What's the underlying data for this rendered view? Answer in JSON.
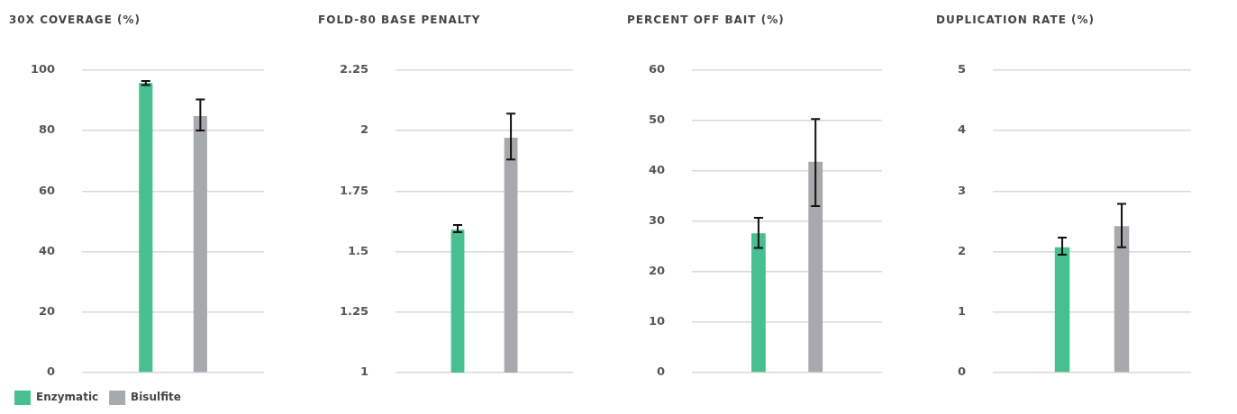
{
  "chart_data": [
    {
      "type": "bar",
      "title": "30X COVERAGE (%)",
      "categories": [
        null
      ],
      "series": [
        {
          "name": "Enzymatic",
          "color": "#48bf91",
          "values": [
            95.7
          ],
          "errors": [
            [
              95.0,
              96.4
            ]
          ]
        },
        {
          "name": "Bisulfite",
          "color": "#a8a9ad",
          "values": [
            84.8
          ],
          "errors": [
            [
              80,
              90.3
            ]
          ]
        }
      ],
      "ylim": [
        0,
        100
      ],
      "yticks": [
        0,
        20,
        40,
        60,
        80,
        100
      ],
      "grid": "y",
      "legend": "bottom left",
      "tick_labels": "y"
    },
    {
      "type": "bar",
      "title": "FOLD-80 BASE PENALTY",
      "categories": [
        null
      ],
      "series": [
        {
          "color": "#48bf91",
          "values": [
            1.59
          ],
          "errors": [
            [
              1.58,
              1.61
            ]
          ]
        },
        {
          "color": "#a8a9ad",
          "values": [
            1.97
          ],
          "errors": [
            [
              1.88,
              2.07
            ]
          ]
        }
      ],
      "ylim": [
        1,
        2.25
      ],
      "yticks": [
        1,
        1.25,
        1.5,
        1.75,
        2,
        2.25
      ],
      "grid": "y",
      "legend": false,
      "tick_labels": "y"
    },
    {
      "type": "bar",
      "title": "PERCENT OFF BAIT (%)",
      "categories": [
        null
      ],
      "series": [
        {
          "color": "#48bf91",
          "values": [
            27.6
          ],
          "errors": [
            [
              24.7,
              30.7
            ]
          ]
        },
        {
          "color": "#a8a9ad",
          "values": [
            41.8
          ],
          "errors": [
            [
              33,
              50.3
            ]
          ]
        }
      ],
      "ylim": [
        0,
        60
      ],
      "yticks": [
        0,
        10,
        20,
        30,
        40,
        50,
        60
      ],
      "grid": "y",
      "legend": false,
      "tick_labels": "y"
    },
    {
      "type": "bar",
      "title": "DUPLICATION RATE (%)",
      "categories": [
        null
      ],
      "series": [
        {
          "color": "#48bf91",
          "values": [
            2.07
          ],
          "errors": [
            [
              1.95,
              2.23
            ]
          ]
        },
        {
          "color": "#a8a9ad",
          "values": [
            2.42
          ],
          "errors": [
            [
              2.07,
              2.79
            ]
          ]
        }
      ],
      "ylim": [
        0,
        5
      ],
      "yticks": [
        0,
        1,
        2,
        3,
        4,
        5
      ],
      "grid": "y",
      "legend": false,
      "tick_labels": "y"
    }
  ]
}
